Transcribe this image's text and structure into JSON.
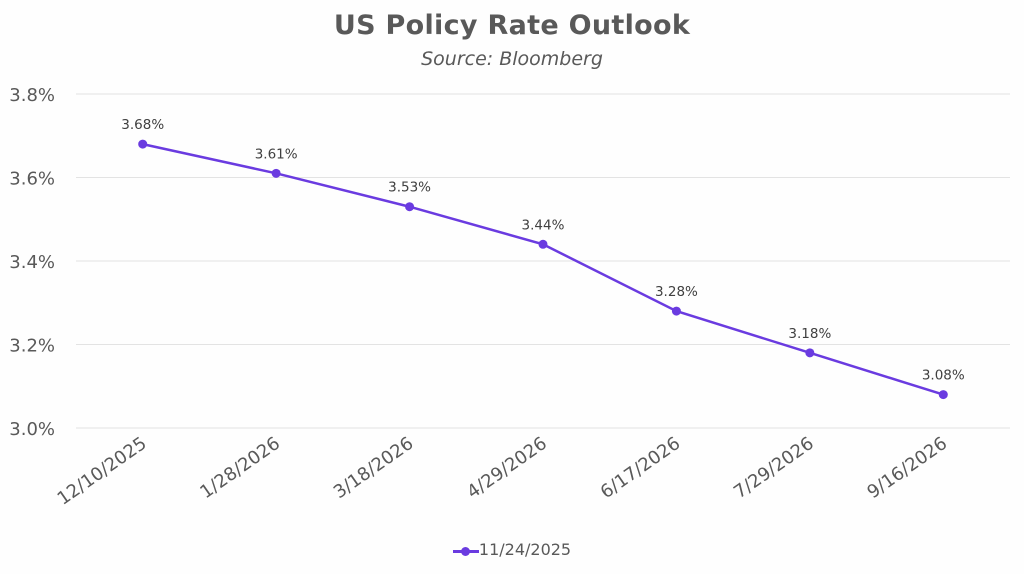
{
  "chart_data": {
    "type": "line",
    "title": "US Policy Rate Outlook",
    "subtitle": "Source: Bloomberg",
    "xlabel": "",
    "ylabel": "",
    "categories": [
      "12/10/2025",
      "1/28/2026",
      "3/18/2026",
      "4/29/2026",
      "6/17/2026",
      "7/29/2026",
      "9/16/2026"
    ],
    "series": [
      {
        "name": "11/24/2025",
        "color": "#6a3be0",
        "values": [
          3.68,
          3.61,
          3.53,
          3.44,
          3.28,
          3.18,
          3.08
        ],
        "labels": [
          "3.68%",
          "3.61%",
          "3.53%",
          "3.44%",
          "3.28%",
          "3.18%",
          "3.08%"
        ]
      }
    ],
    "ylim": [
      3.0,
      3.8
    ],
    "yticks": [
      3.0,
      3.2,
      3.4,
      3.6,
      3.8
    ],
    "ytick_labels": [
      "3.0%",
      "3.2%",
      "3.4%",
      "3.6%",
      "3.8%"
    ],
    "grid": true,
    "legend_position": "bottom"
  }
}
